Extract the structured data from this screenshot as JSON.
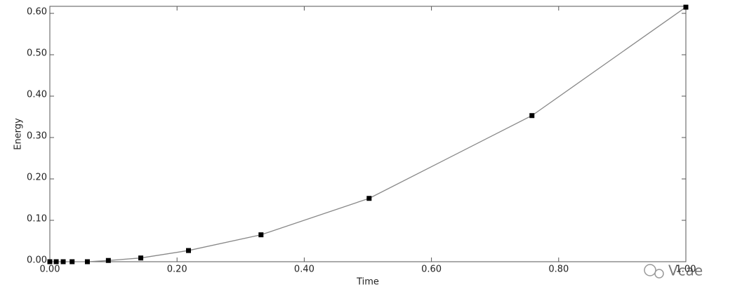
{
  "chart_data": {
    "type": "line",
    "x_label": "Time",
    "y_label": "Energy",
    "x": [
      0,
      0.01,
      0.021,
      0.035,
      0.059,
      0.092,
      0.143,
      0.218,
      0.332,
      0.502,
      0.758,
      1.0
    ],
    "series": [
      {
        "color": "#888888",
        "marker_color": "#000000",
        "values": [
          0,
          0,
          0,
          0,
          0,
          0.003,
          0.009,
          0.027,
          0.065,
          0.153,
          0.353,
          0.615
        ]
      }
    ],
    "xlim": [
      0,
      1.0
    ],
    "ylim": [
      0,
      0.617
    ],
    "xticks": [
      {
        "value": 0,
        "label": "0.00"
      },
      {
        "value": 0.2,
        "label": "0.20"
      },
      {
        "value": 0.4,
        "label": "0.40"
      },
      {
        "value": 0.6,
        "label": "0.60"
      },
      {
        "value": 0.8,
        "label": "0.80"
      },
      {
        "value": 1.0,
        "label": "1.00"
      }
    ],
    "yticks": [
      {
        "value": 0,
        "label": "0.00"
      },
      {
        "value": 0.1,
        "label": "0.10"
      },
      {
        "value": 0.2,
        "label": "0.20"
      },
      {
        "value": 0.3,
        "label": "0.30"
      },
      {
        "value": 0.4,
        "label": "0.40"
      },
      {
        "value": 0.5,
        "label": "0.50"
      },
      {
        "value": 0.6,
        "label": "0.60"
      }
    ],
    "grid": false,
    "watermark": "Vcae"
  }
}
